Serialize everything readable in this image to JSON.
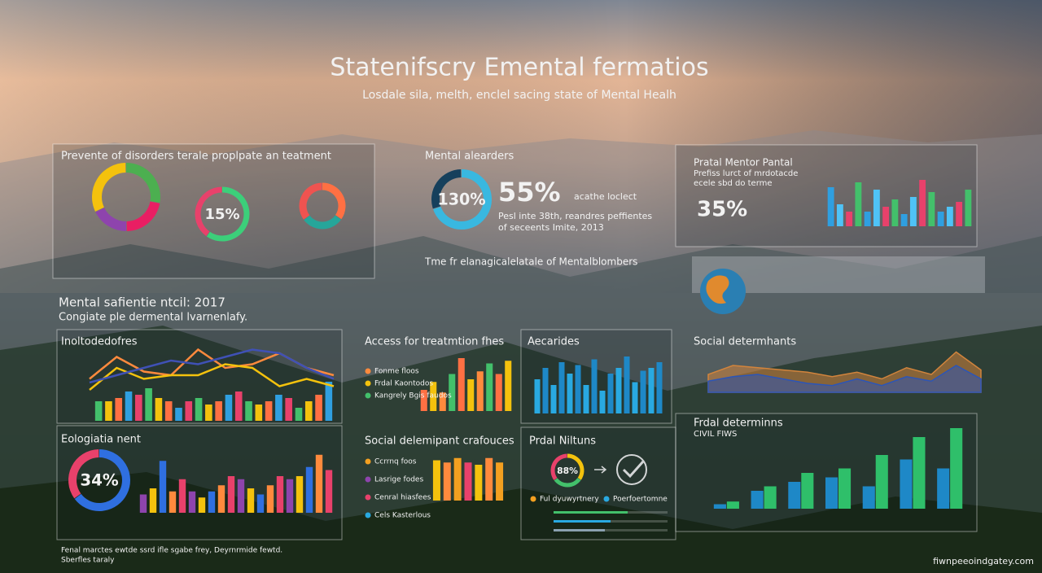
{
  "header": {
    "title": "Statenifscry Emental fermatios",
    "subtitle": "Losdale sila, melth, enclel sacing state of Mental Healh"
  },
  "section": {
    "title": "Mental safientie ntcil: 2017",
    "subtitle": "Congiate ple dermental lvarnenlafy."
  },
  "panels": [
    {
      "title": "Prevente of disorders terale proplpate an teatment",
      "donuts": [
        {
          "values": [
            28,
            22,
            18,
            32
          ],
          "colors": [
            "#4caf50",
            "#e91e63",
            "#8e44ad",
            "#f4c20d"
          ]
        },
        {
          "values": [
            60,
            40
          ],
          "colors": [
            "#3ccf7a",
            "#e8416b"
          ],
          "label": "15%"
        },
        {
          "values": [
            35,
            30,
            35
          ],
          "colors": [
            "#ff7043",
            "#26a69a",
            "#ef5350"
          ]
        }
      ]
    },
    {
      "title": "Mental alearders",
      "donuts": [
        {
          "values": [
            70,
            30
          ],
          "colors": [
            "#39b8e0",
            "#16405c"
          ],
          "label": "130%"
        }
      ],
      "big": "55%",
      "note": "acathe loclect",
      "caption": [
        "Pesl inte 38th, reandres peffientes",
        "of seceents Imite, 2013"
      ],
      "footer": "Tme fr elanagicalelatale of Mentalblombers"
    },
    {
      "title": "Pratal Mentor Pantal",
      "subtitle": [
        "Prefiss lurct of mrdotacde",
        "ecele sbd do terme"
      ],
      "big": "35%",
      "bars": {
        "values": [
          80,
          45,
          30,
          90,
          30,
          75,
          40,
          55,
          25,
          60,
          95,
          70,
          30,
          40,
          50,
          75
        ],
        "colors": [
          "#2f9fe0",
          "#4fc3f7",
          "#e8416b",
          "#43c06b"
        ]
      }
    },
    {
      "title": "Inoltodedofres",
      "bars": {
        "values": [
          30,
          30,
          35,
          45,
          40,
          50,
          35,
          30,
          20,
          30,
          35,
          25,
          30,
          40,
          45,
          30,
          25,
          30,
          40,
          35,
          20,
          30,
          40,
          60
        ],
        "colors": [
          "#43c06b",
          "#f4c20d",
          "#ff7043",
          "#2f9fe0",
          "#e8416b"
        ]
      },
      "lines": [
        {
          "values": [
            55,
            85,
            65,
            60,
            95,
            70,
            75,
            90,
            70,
            60
          ],
          "color": "#ff8a3d"
        },
        {
          "values": [
            40,
            70,
            55,
            60,
            60,
            75,
            70,
            45,
            55,
            45
          ],
          "color": "#f4c20d"
        },
        {
          "values": [
            50,
            60,
            70,
            80,
            75,
            85,
            95,
            90,
            70,
            55
          ],
          "color": "#3f51b5"
        }
      ]
    },
    {
      "title": "Access for treatmtion fhes",
      "legend": [
        {
          "label": "Fonme floos",
          "color": "#ff8a3d"
        },
        {
          "label": "Frdal Kaontodos",
          "color": "#f4c20d"
        },
        {
          "label": "Kangrely Bgis faudos",
          "color": "#43c06b"
        }
      ],
      "bars": {
        "values": [
          40,
          55,
          35,
          70,
          100,
          60,
          75,
          90,
          70,
          95
        ],
        "colors": [
          "#ff7043",
          "#f4c20d",
          "#ff8a3d",
          "#43c06b"
        ]
      }
    },
    {
      "title": "Aecarides",
      "bars": {
        "values": [
          60,
          80,
          50,
          90,
          70,
          85,
          50,
          95,
          40,
          70,
          80,
          100,
          55,
          75,
          80,
          90
        ],
        "colors": [
          "#29a9e1",
          "#1e88c7"
        ]
      }
    },
    {
      "title": "Social determhants",
      "lines": [
        {
          "values": [
            40,
            60,
            55,
            50,
            45,
            35,
            45,
            30,
            55,
            40,
            90,
            50
          ],
          "color": "#d2843c"
        },
        {
          "values": [
            25,
            35,
            40,
            30,
            20,
            15,
            30,
            15,
            35,
            25,
            60,
            30
          ],
          "color": "#2b55b8"
        }
      ]
    },
    {
      "title": "Eologiatia nent",
      "donuts": [
        {
          "values": [
            65,
            35
          ],
          "colors": [
            "#2f6fe0",
            "#e8416b"
          ],
          "label": "34%"
        }
      ],
      "bars": {
        "values": [
          30,
          40,
          85,
          35,
          55,
          35,
          25,
          35,
          45,
          60,
          55,
          40,
          30,
          45,
          60,
          55,
          60,
          75,
          95,
          70
        ],
        "colors": [
          "#8e44ad",
          "#f4c20d",
          "#2f6fe0",
          "#ff8a3d",
          "#e8416b"
        ]
      }
    },
    {
      "title": "Social delemipant crafouces",
      "legend": [
        {
          "label": "Ccrrnq foos",
          "color": "#f4a020"
        },
        {
          "label": "Lasrige fodes",
          "color": "#8e44ad"
        },
        {
          "label": "Cenral hiasfees",
          "color": "#e8416b"
        },
        {
          "label": "Cels Kasterlous",
          "color": "#29a9e1"
        }
      ],
      "bars": {
        "values": [
          90,
          85,
          95,
          85,
          80,
          95,
          85
        ],
        "colors": [
          "#f4c20d",
          "#ff8a3d",
          "#f4a020",
          "#e8416b"
        ]
      }
    },
    {
      "title": "Prdal Niltuns",
      "donuts": [
        {
          "values": [
            35,
            30,
            35
          ],
          "colors": [
            "#f4c20d",
            "#43c06b",
            "#e8416b"
          ],
          "label": "88%"
        }
      ],
      "legend": [
        {
          "label": "Ful dyuwyrtnery",
          "color": "#f4a020"
        },
        {
          "label": "Poerfoertomne",
          "color": "#29a9e1"
        }
      ],
      "progress": {
        "values": [
          65,
          50,
          45
        ],
        "colors": [
          "#43c06b",
          "#29a9e1",
          "#8aa0b0"
        ]
      }
    },
    {
      "title": "Frdal determinns",
      "subtitle": [
        "CIVIL FIWS"
      ],
      "series": [
        {
          "color": "#1e88c7",
          "values": [
            5,
            20,
            30,
            35,
            25,
            55,
            45
          ]
        },
        {
          "color": "#2fbf6a",
          "values": [
            8,
            25,
            40,
            45,
            60,
            80,
            90
          ]
        }
      ]
    }
  ],
  "footer": [
    "Fenal marctes ewtde ssrd ifle sgabe frey, Deyrnrmide fewtd.",
    "Sberfles taraly"
  ],
  "watermark": "fiwnpeeoindgatey.com"
}
